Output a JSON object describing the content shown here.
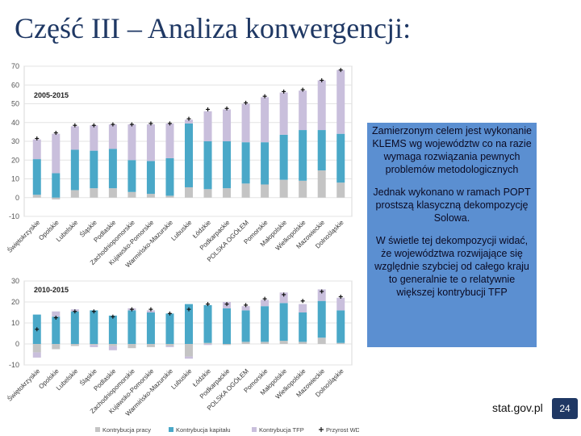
{
  "slide": {
    "title": "Część III – Analiza konwergencji:",
    "info_paragraphs": [
      "Zamierzonym celem jest wykonanie KLEMS wg województw co na razie wymaga rozwiązania pewnych problemów metodologicznych",
      "Jednak wykonano w ramach POPT prostszą klasyczną dekompozycję Solowa.",
      "W świetle tej dekompozycji widać, że województwa rozwijające się względnie szybciej od całego kraju to generalnie te o relatywnie większej kontrybucji TFP"
    ],
    "footer_site": "stat.gov.pl",
    "page_number": "24"
  },
  "chart_data": [
    {
      "type": "bar",
      "stacked": true,
      "period_label": "2005-2015",
      "categories": [
        "Świętokrzyskie",
        "Opolskie",
        "Lubelskie",
        "Śląskie",
        "Podlaskie",
        "Zachodniopomorskie",
        "Kujawsko-Pomorskie",
        "Warmińsko-Mazurskie",
        "Lubuskie",
        "Łódzkie",
        "Podkarpackie",
        "POLSKA OGÓŁEM",
        "Pomorskie",
        "Małopolskie",
        "Wielkopolskie",
        "Mazowieckie",
        "Dolnośląskie"
      ],
      "series": [
        {
          "name": "Kontrybucja pracy",
          "color": "#c4c4c4",
          "values": [
            1.5,
            -1,
            4,
            5,
            5,
            3,
            2,
            1,
            5.5,
            4.5,
            5,
            7.5,
            7,
            9.5,
            9,
            14.5,
            8
          ]
        },
        {
          "name": "Kontrybucja kapitału",
          "color": "#4aa8c8",
          "values": [
            19,
            13,
            21.5,
            20,
            21,
            17,
            17.5,
            20,
            34,
            25.5,
            25,
            22,
            22.5,
            24,
            27,
            21.5,
            26
          ]
        },
        {
          "name": "Kontrybucja TFP",
          "color": "#c9bfdc",
          "values": [
            10.5,
            21,
            12.5,
            13.5,
            13,
            19,
            19.5,
            18.5,
            2,
            16,
            17,
            20.5,
            24,
            22.5,
            21,
            26.5,
            34
          ]
        },
        {
          "name": "Przyrost WDB",
          "type": "marker",
          "values": [
            31.5,
            34.5,
            38.5,
            38.5,
            39,
            39,
            39.5,
            39.5,
            42,
            47,
            47.5,
            50.5,
            54,
            56.5,
            57.5,
            62.5,
            68
          ]
        }
      ],
      "yticks": [
        -10,
        0,
        10,
        20,
        30,
        40,
        50,
        60,
        70
      ],
      "ylim": [
        -10,
        70
      ]
    },
    {
      "type": "bar",
      "stacked": true,
      "period_label": "2010-2015",
      "categories": [
        "Świętokrzyskie",
        "Opolskie",
        "Lubelskie",
        "Śląskie",
        "Podlaskie",
        "Zachodniopomorskie",
        "Kujawsko-Pomorskie",
        "Warmińsko-Mazurskie",
        "Lubuskie",
        "Łódzkie",
        "Podkarpackie",
        "POLSKA OGÓŁEM",
        "Pomorskie",
        "Małopolskie",
        "Wielkopolskie",
        "Mazowieckie",
        "Dolnośląskie"
      ],
      "series": [
        {
          "name": "Kontrybucja pracy",
          "color": "#c4c4c4",
          "values": [
            -4,
            -2.5,
            -1,
            -0.5,
            -1,
            -2,
            -1.5,
            -1,
            -6,
            0.5,
            -0.5,
            1,
            1,
            1.5,
            1,
            3,
            0.5
          ]
        },
        {
          "name": "Kontrybucja kapitału",
          "color": "#4aa8c8",
          "values": [
            14,
            13,
            15.5,
            16,
            13.5,
            16,
            15,
            14.5,
            19,
            18,
            17,
            15,
            17,
            18,
            14,
            17.5,
            15.5
          ]
        },
        {
          "name": "Kontrybucja TFP",
          "color": "#c9bfdc",
          "values": [
            -2.5,
            2.5,
            1,
            -1,
            -2,
            1,
            1,
            -0.5,
            -1,
            -0.5,
            3,
            2,
            3,
            5,
            4,
            5.5,
            6
          ]
        },
        {
          "name": "Przyrost WDB",
          "type": "marker",
          "values": [
            7,
            12.5,
            15.5,
            15.5,
            13,
            16.5,
            16.5,
            14.5,
            16.5,
            19,
            19,
            18.5,
            21.5,
            23.5,
            20.5,
            25,
            22.5
          ]
        }
      ],
      "yticks": [
        -10,
        0,
        10,
        20,
        30
      ],
      "ylim": [
        -10,
        30
      ]
    }
  ]
}
